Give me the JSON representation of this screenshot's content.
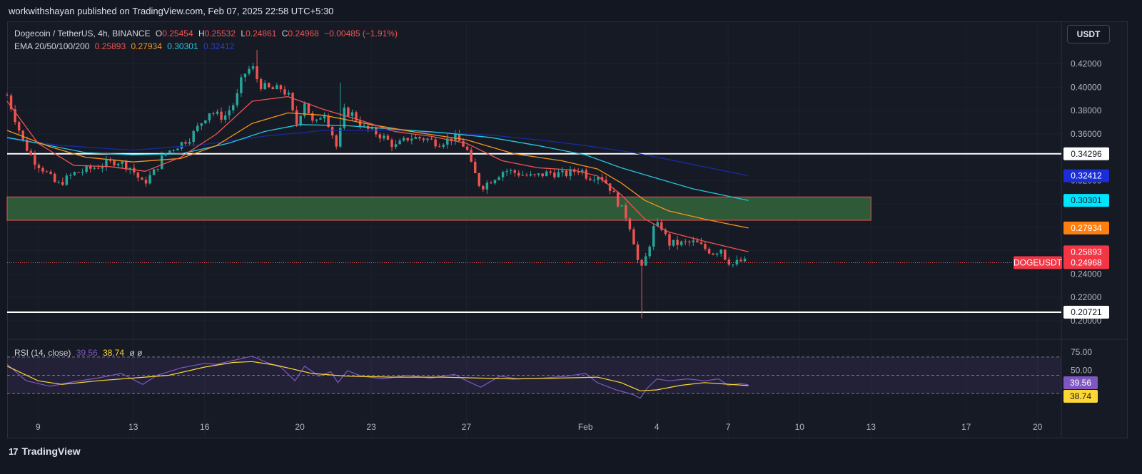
{
  "header": {
    "published_by": "workwithshayan published on TradingView.com, Feb 07, 2025 22:58 UTC+5:30"
  },
  "legend": {
    "symbol": "Dogecoin / TetherUS, 4h, BINANCE",
    "o_label": "O",
    "o": "0.25454",
    "h_label": "H",
    "h": "0.25532",
    "l_label": "L",
    "l": "0.24861",
    "c_label": "C",
    "c": "0.24968",
    "change": "−0.00485 (−1.91%)",
    "ema_label": "EMA 20/50/100/200",
    "ema20": "0.25893",
    "ema50": "0.27934",
    "ema100": "0.30301",
    "ema200": "0.32412"
  },
  "rsi_legend": {
    "label": "RSI (14, close)",
    "rsi": "39.56",
    "ma": "38.74",
    "extra": "ø ø"
  },
  "currency_button": "USDT",
  "brand": {
    "logo": "17",
    "name": "TradingView"
  },
  "colors": {
    "bg": "#161a25",
    "up": "#26a69a",
    "down": "#ef5350",
    "ema20": "#ef5350",
    "ema50": "#f7931a",
    "ema100": "#26c6da",
    "ema200": "#1a2a9c",
    "rsi": "#7e57c2",
    "rsi_ma": "#fdd835",
    "zone": "#2e5a38"
  },
  "chart_data": {
    "type": "candlestick",
    "symbol": "DOGEUSDT",
    "interval": "4h",
    "y_range": [
      0.195,
      0.432
    ],
    "price_ticks": [
      "0.42000",
      "0.40000",
      "0.38000",
      "0.36000",
      "0.34000",
      "0.32000",
      "0.30000",
      "0.28000",
      "0.26000",
      "0.24000",
      "0.22000",
      "0.20000"
    ],
    "x_ticks": [
      {
        "label": "9",
        "day": 9
      },
      {
        "label": "13",
        "day": 13
      },
      {
        "label": "16",
        "day": 16
      },
      {
        "label": "20",
        "day": 20
      },
      {
        "label": "23",
        "day": 23
      },
      {
        "label": "27",
        "day": 27
      },
      {
        "label": "Feb",
        "day": 32
      },
      {
        "label": "4",
        "day": 35
      },
      {
        "label": "7",
        "day": 38
      },
      {
        "label": "10",
        "day": 41
      },
      {
        "label": "13",
        "day": 44
      },
      {
        "label": "17",
        "day": 48
      },
      {
        "label": "20",
        "day": 51
      }
    ],
    "x_range_days": [
      7.7,
      52.0
    ],
    "last_day": 38.85,
    "anchors": [
      [
        7.7,
        0.393
      ],
      [
        8.0,
        0.375
      ],
      [
        8.4,
        0.352
      ],
      [
        8.8,
        0.338
      ],
      [
        9.3,
        0.328
      ],
      [
        9.8,
        0.316
      ],
      [
        10.5,
        0.326
      ],
      [
        11.5,
        0.332
      ],
      [
        12.3,
        0.337
      ],
      [
        12.9,
        0.331
      ],
      [
        13.4,
        0.317
      ],
      [
        13.9,
        0.328
      ],
      [
        14.3,
        0.343
      ],
      [
        14.8,
        0.349
      ],
      [
        15.4,
        0.357
      ],
      [
        15.9,
        0.371
      ],
      [
        16.2,
        0.379
      ],
      [
        16.8,
        0.374
      ],
      [
        17.3,
        0.388
      ],
      [
        17.6,
        0.41
      ],
      [
        18.0,
        0.418
      ],
      [
        18.3,
        0.402
      ],
      [
        18.8,
        0.398
      ],
      [
        19.2,
        0.399
      ],
      [
        19.6,
        0.391
      ],
      [
        19.8,
        0.365
      ],
      [
        20.2,
        0.388
      ],
      [
        20.6,
        0.366
      ],
      [
        21.0,
        0.38
      ],
      [
        21.3,
        0.364
      ],
      [
        21.6,
        0.345
      ],
      [
        21.8,
        0.38
      ],
      [
        22.2,
        0.377
      ],
      [
        22.7,
        0.365
      ],
      [
        23.1,
        0.362
      ],
      [
        23.6,
        0.356
      ],
      [
        24.0,
        0.349
      ],
      [
        24.6,
        0.357
      ],
      [
        25.3,
        0.356
      ],
      [
        25.8,
        0.352
      ],
      [
        26.5,
        0.357
      ],
      [
        27.0,
        0.348
      ],
      [
        27.2,
        0.333
      ],
      [
        27.6,
        0.314
      ],
      [
        28.0,
        0.32
      ],
      [
        28.6,
        0.329
      ],
      [
        29.2,
        0.326
      ],
      [
        29.8,
        0.323
      ],
      [
        30.5,
        0.327
      ],
      [
        31.1,
        0.325
      ],
      [
        31.8,
        0.33
      ],
      [
        32.1,
        0.323
      ],
      [
        32.6,
        0.325
      ],
      [
        33.0,
        0.315
      ],
      [
        33.4,
        0.3
      ],
      [
        33.8,
        0.286
      ],
      [
        34.1,
        0.263
      ],
      [
        34.3,
        0.24
      ],
      [
        34.6,
        0.258
      ],
      [
        34.9,
        0.282
      ],
      [
        35.2,
        0.28
      ],
      [
        35.5,
        0.266
      ],
      [
        36.0,
        0.266
      ],
      [
        36.6,
        0.267
      ],
      [
        37.0,
        0.262
      ],
      [
        37.4,
        0.258
      ],
      [
        37.7,
        0.262
      ],
      [
        37.9,
        0.253
      ],
      [
        38.2,
        0.248
      ],
      [
        38.5,
        0.251
      ],
      [
        38.85,
        0.24968
      ]
    ],
    "spikes": [
      {
        "day": 34.3,
        "low": 0.202
      },
      {
        "day": 18.15,
        "high": 0.432
      },
      {
        "day": 21.7,
        "high": 0.404
      }
    ],
    "ema": {
      "ema20": [
        [
          7.7,
          0.388
        ],
        [
          9.0,
          0.352
        ],
        [
          10.5,
          0.333
        ],
        [
          12.0,
          0.332
        ],
        [
          13.5,
          0.328
        ],
        [
          15.0,
          0.34
        ],
        [
          16.5,
          0.36
        ],
        [
          18.0,
          0.388
        ],
        [
          19.5,
          0.392
        ],
        [
          21.0,
          0.381
        ],
        [
          22.5,
          0.372
        ],
        [
          24.0,
          0.362
        ],
        [
          25.5,
          0.358
        ],
        [
          27.0,
          0.352
        ],
        [
          28.5,
          0.337
        ],
        [
          30.0,
          0.331
        ],
        [
          31.5,
          0.329
        ],
        [
          32.5,
          0.324
        ],
        [
          33.5,
          0.308
        ],
        [
          34.5,
          0.287
        ],
        [
          35.5,
          0.276
        ],
        [
          37.0,
          0.268
        ],
        [
          38.85,
          0.25893
        ]
      ],
      "ema50": [
        [
          7.7,
          0.363
        ],
        [
          9.5,
          0.349
        ],
        [
          11.0,
          0.34
        ],
        [
          13.0,
          0.336
        ],
        [
          15.0,
          0.339
        ],
        [
          16.5,
          0.35
        ],
        [
          18.0,
          0.369
        ],
        [
          19.5,
          0.378
        ],
        [
          21.0,
          0.376
        ],
        [
          23.0,
          0.368
        ],
        [
          25.0,
          0.361
        ],
        [
          27.0,
          0.355
        ],
        [
          29.0,
          0.343
        ],
        [
          31.0,
          0.337
        ],
        [
          32.5,
          0.33
        ],
        [
          33.5,
          0.318
        ],
        [
          34.5,
          0.303
        ],
        [
          35.5,
          0.294
        ],
        [
          37.0,
          0.287
        ],
        [
          38.85,
          0.27934
        ]
      ],
      "ema100": [
        [
          7.7,
          0.357
        ],
        [
          9.0,
          0.352
        ],
        [
          11.0,
          0.344
        ],
        [
          13.0,
          0.342
        ],
        [
          15.0,
          0.343
        ],
        [
          17.0,
          0.352
        ],
        [
          18.5,
          0.362
        ],
        [
          20.0,
          0.368
        ],
        [
          22.0,
          0.367
        ],
        [
          24.0,
          0.364
        ],
        [
          26.0,
          0.361
        ],
        [
          28.0,
          0.357
        ],
        [
          30.0,
          0.35
        ],
        [
          32.0,
          0.342
        ],
        [
          33.5,
          0.331
        ],
        [
          35.0,
          0.322
        ],
        [
          36.5,
          0.313
        ],
        [
          38.85,
          0.30301
        ]
      ],
      "ema200": [
        [
          7.7,
          0.356
        ],
        [
          10.0,
          0.35
        ],
        [
          13.0,
          0.346
        ],
        [
          16.0,
          0.351
        ],
        [
          18.5,
          0.358
        ],
        [
          21.0,
          0.363
        ],
        [
          23.5,
          0.363
        ],
        [
          26.0,
          0.361
        ],
        [
          28.0,
          0.359
        ],
        [
          30.0,
          0.355
        ],
        [
          32.0,
          0.35
        ],
        [
          34.0,
          0.344
        ],
        [
          36.0,
          0.336
        ],
        [
          38.85,
          0.32412
        ]
      ]
    },
    "levels": [
      {
        "name": "resistance",
        "value": 0.34296,
        "label": "0.34296"
      },
      {
        "name": "support",
        "value": 0.20721,
        "label": "0.20721"
      }
    ],
    "zone": {
      "from_day": 7.7,
      "to_day": 44.0,
      "low": 0.286,
      "high": 0.306
    },
    "price_labels": [
      {
        "label": "0.32412",
        "value": 0.32412,
        "color": "#1a2dd6"
      },
      {
        "label": "0.30301",
        "value": 0.30301,
        "color": "#00e5ff"
      },
      {
        "label": "0.27934",
        "value": 0.27934,
        "color": "#ff7f0e"
      },
      {
        "label": "0.25893",
        "value": 0.25893,
        "color": "#f23645"
      },
      {
        "label": "0.24968",
        "value": 0.24968,
        "color": "#f23645",
        "tag": "DOGEUSDT"
      }
    ],
    "rsi": {
      "range": [
        20,
        80
      ],
      "ticks": [
        "75.00",
        "50.00"
      ],
      "band": [
        30,
        70
      ],
      "value_label": "39.56",
      "ma_label": "38.74",
      "rsi_points": [
        [
          7.7,
          62
        ],
        [
          8.5,
          44
        ],
        [
          9.5,
          38
        ],
        [
          10.5,
          43
        ],
        [
          11.5,
          47
        ],
        [
          12.5,
          52
        ],
        [
          13.4,
          40
        ],
        [
          14.0,
          50
        ],
        [
          15.0,
          58
        ],
        [
          16.0,
          63
        ],
        [
          16.5,
          62
        ],
        [
          17.5,
          68
        ],
        [
          18.0,
          71
        ],
        [
          18.6,
          64
        ],
        [
          19.2,
          59
        ],
        [
          19.8,
          44
        ],
        [
          20.2,
          60
        ],
        [
          20.8,
          49
        ],
        [
          21.3,
          54
        ],
        [
          21.6,
          42
        ],
        [
          22.0,
          55
        ],
        [
          22.6,
          49
        ],
        [
          23.5,
          46
        ],
        [
          24.5,
          50
        ],
        [
          25.5,
          47
        ],
        [
          26.5,
          51
        ],
        [
          27.0,
          44
        ],
        [
          27.6,
          37
        ],
        [
          28.4,
          49
        ],
        [
          29.2,
          46
        ],
        [
          30.2,
          47
        ],
        [
          31.2,
          49
        ],
        [
          32.0,
          52
        ],
        [
          32.5,
          42
        ],
        [
          33.3,
          34
        ],
        [
          34.0,
          29
        ],
        [
          34.3,
          25
        ],
        [
          34.6,
          36
        ],
        [
          35.0,
          46
        ],
        [
          35.5,
          44
        ],
        [
          36.3,
          46
        ],
        [
          37.0,
          44
        ],
        [
          37.6,
          46
        ],
        [
          38.0,
          39
        ],
        [
          38.5,
          41
        ],
        [
          38.85,
          39.56
        ]
      ],
      "ma_points": [
        [
          7.7,
          60
        ],
        [
          9.0,
          44
        ],
        [
          10.0,
          40
        ],
        [
          11.5,
          44
        ],
        [
          13.0,
          47
        ],
        [
          14.5,
          50
        ],
        [
          16.0,
          59
        ],
        [
          17.2,
          64
        ],
        [
          18.0,
          65
        ],
        [
          19.0,
          61
        ],
        [
          20.5,
          52
        ],
        [
          22.0,
          49
        ],
        [
          24.0,
          48
        ],
        [
          26.0,
          48
        ],
        [
          27.5,
          47
        ],
        [
          29.0,
          46
        ],
        [
          31.0,
          47
        ],
        [
          32.5,
          48
        ],
        [
          33.5,
          42
        ],
        [
          34.3,
          33
        ],
        [
          35.0,
          34
        ],
        [
          36.0,
          39
        ],
        [
          37.0,
          42
        ],
        [
          38.85,
          38.74
        ]
      ]
    }
  }
}
